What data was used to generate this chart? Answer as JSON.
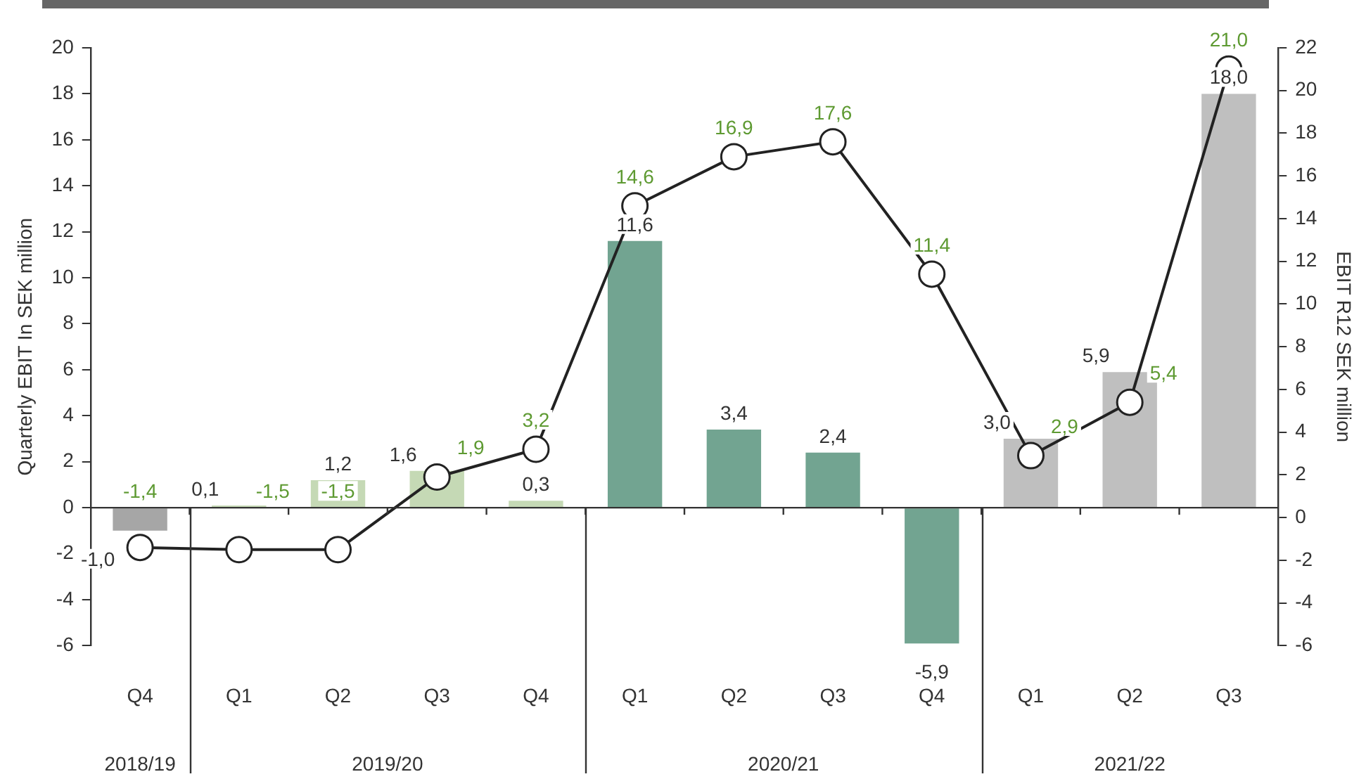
{
  "chart_data": {
    "type": "bar",
    "ylabel": "Quarterly EBIT In SEK million",
    "y2label": "EBIT R12 SEK million",
    "categories": [
      "Q4",
      "Q1",
      "Q2",
      "Q3",
      "Q4",
      "Q1",
      "Q2",
      "Q3",
      "Q4",
      "Q1",
      "Q2",
      "Q3"
    ],
    "series": [
      {
        "colors": [
          "#a6a6a6",
          "#c5d9b5",
          "#c5d9b5",
          "#c5d9b5",
          "#c5d9b5",
          "#72a491",
          "#72a491",
          "#72a491",
          "#72a491",
          "#bfbfbf",
          "#bfbfbf",
          "#bfbfbf"
        ],
        "values": [
          -1.0,
          0.1,
          1.2,
          1.6,
          0.3,
          11.6,
          3.4,
          2.4,
          -5.9,
          3.0,
          5.9,
          18.0
        ],
        "value_labels": [
          "-1,0",
          "0,1",
          "1,2",
          "1,6",
          "0,3",
          "11,6",
          "3,4",
          "2,4",
          "-5,9",
          "3,0",
          "5,9",
          "18,0"
        ]
      },
      {
        "type": "line",
        "axis": "y2",
        "color": "#222222",
        "values": [
          -1.4,
          -1.5,
          -1.5,
          1.9,
          3.2,
          14.6,
          16.9,
          17.6,
          11.4,
          2.9,
          5.4,
          21.0
        ],
        "value_labels": [
          "-1,4",
          "-1,5",
          "-1,5",
          "1,9",
          "3,2",
          "14,6",
          "16,9",
          "17,6",
          "11,4",
          "2,9",
          "5,4",
          "21,0"
        ]
      }
    ],
    "ylim": [
      -6,
      20
    ],
    "yticks": [
      -6,
      -4,
      -2,
      0,
      2,
      4,
      6,
      8,
      10,
      12,
      14,
      16,
      18,
      20
    ],
    "y2lim": [
      -6,
      22
    ],
    "y2ticks": [
      -6,
      -4,
      -2,
      0,
      2,
      4,
      6,
      8,
      10,
      12,
      14,
      16,
      18,
      20,
      22
    ],
    "annotations": [
      "2018/19",
      "2019/20",
      "2020/21",
      "2021/22"
    ],
    "marker": "circle",
    "legend": false
  }
}
